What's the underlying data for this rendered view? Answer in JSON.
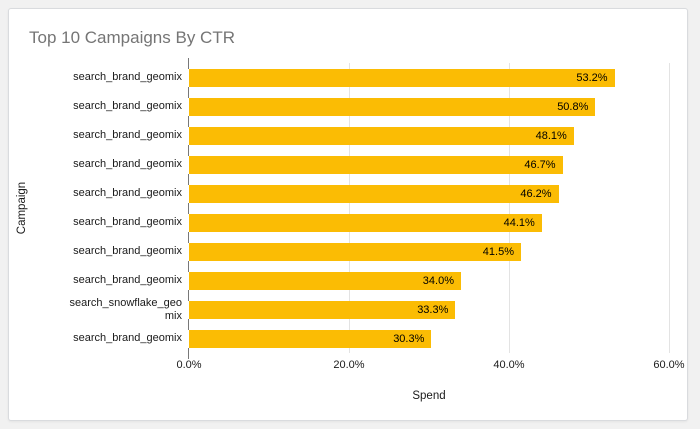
{
  "window": {
    "background_color": "#f1f1f1",
    "card_background": "#ffffff",
    "card_border_color": "#d9dbde"
  },
  "chart_data": {
    "type": "bar",
    "orientation": "horizontal",
    "title": "Top 10 Campaigns By CTR",
    "title_color": "#757575",
    "xlabel": "Spend",
    "ylabel": "Campaign",
    "bar_color": "#FBBC04",
    "grid": true,
    "legend": "none",
    "xlim": [
      0,
      60
    ],
    "categories": [
      "search_brand_geomix",
      "search_brand_geomix",
      "search_brand_geomix",
      "search_brand_geomix",
      "search_brand_geomix",
      "search_brand_geomix",
      "search_brand_geomix",
      "search_brand_geomix",
      "search_snowflake_geo\nmix",
      "search_brand_geomix"
    ],
    "values": [
      53.2,
      50.8,
      48.1,
      46.7,
      46.2,
      44.1,
      41.5,
      34.0,
      33.3,
      30.3
    ],
    "value_labels": [
      "53.2%",
      "50.8%",
      "48.1%",
      "46.7%",
      "46.2%",
      "44.1%",
      "41.5%",
      "34.0%",
      "33.3%",
      "30.3%"
    ],
    "x_ticks": [
      {
        "label": "0.0%",
        "value": 0
      },
      {
        "label": "20.0%",
        "value": 20
      },
      {
        "label": "40.0%",
        "value": 40
      },
      {
        "label": "60.0%",
        "value": 60
      }
    ]
  }
}
